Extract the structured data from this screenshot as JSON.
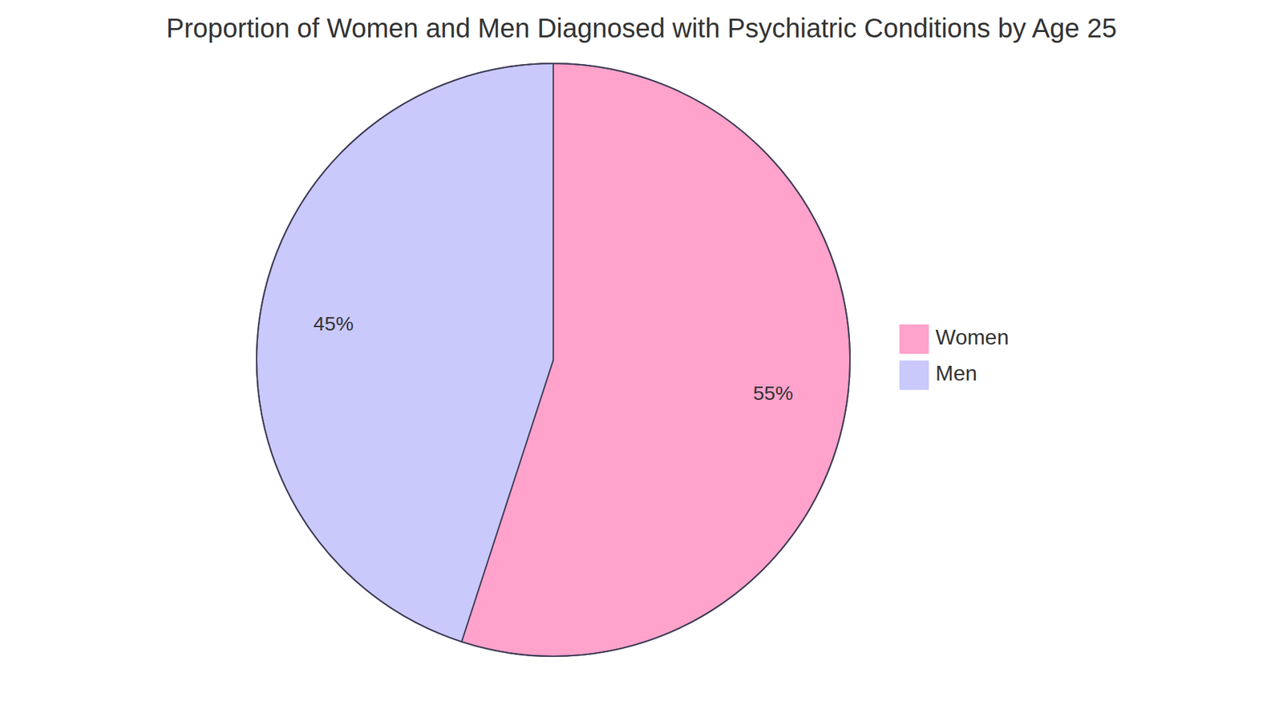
{
  "chart_data": {
    "type": "pie",
    "title": "Proportion of Women and Men Diagnosed with Psychiatric Conditions by Age 25",
    "categories": [
      "Women",
      "Men"
    ],
    "values": [
      55,
      45
    ],
    "value_labels": [
      "55%",
      "45%"
    ],
    "colors": [
      "#ffa2cc",
      "#c9c9fc"
    ],
    "data_labels": true,
    "legend": "right"
  }
}
